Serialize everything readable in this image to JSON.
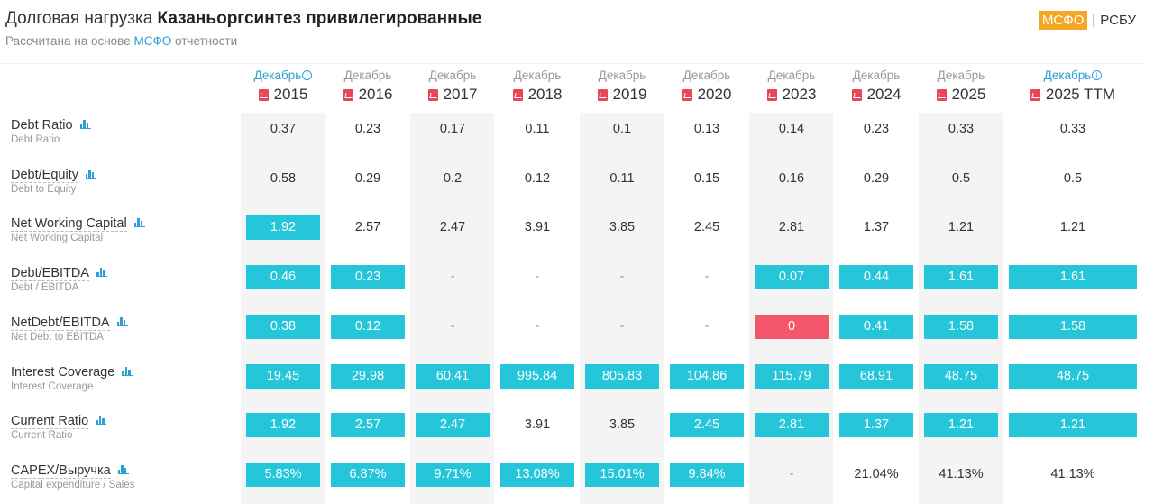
{
  "header": {
    "title_prefix": "Долговая нагрузка",
    "title_company": "Казаньоргсинтез привилегированные",
    "subtitle_prefix": "Рассчитана на основе",
    "subtitle_highlight": "МСФО",
    "subtitle_suffix": "отчетности",
    "standard_active": "МСФО",
    "standard_separator": "|",
    "standard_inactive": "РСБУ"
  },
  "icons": {
    "pdf": "pdf-icon",
    "chart": "bar-chart-icon",
    "info": "info-icon"
  },
  "colors": {
    "highlight": "#26c6da",
    "negative": "#f4566a",
    "accent": "#2b9fd6",
    "active_standard": "#f5a623"
  },
  "columns": [
    {
      "month": "Декабрь",
      "year": "2015",
      "info": true
    },
    {
      "month": "Декабрь",
      "year": "2016",
      "info": false
    },
    {
      "month": "Декабрь",
      "year": "2017",
      "info": false
    },
    {
      "month": "Декабрь",
      "year": "2018",
      "info": false
    },
    {
      "month": "Декабрь",
      "year": "2019",
      "info": false
    },
    {
      "month": "Декабрь",
      "year": "2020",
      "info": false
    },
    {
      "month": "Декабрь",
      "year": "2023",
      "info": false
    },
    {
      "month": "Декабрь",
      "year": "2024",
      "info": false
    },
    {
      "month": "Декабрь",
      "year": "2025",
      "info": false
    },
    {
      "month": "Декабрь",
      "year": "2025 TTM",
      "info": true
    }
  ],
  "rows": [
    {
      "name": "Debt Ratio",
      "sub": "Debt Ratio",
      "cells": [
        {
          "v": "0.37",
          "s": ""
        },
        {
          "v": "0.23",
          "s": ""
        },
        {
          "v": "0.17",
          "s": ""
        },
        {
          "v": "0.11",
          "s": ""
        },
        {
          "v": "0.1",
          "s": ""
        },
        {
          "v": "0.13",
          "s": ""
        },
        {
          "v": "0.14",
          "s": ""
        },
        {
          "v": "0.23",
          "s": ""
        },
        {
          "v": "0.33",
          "s": ""
        },
        {
          "v": "0.33",
          "s": ""
        }
      ]
    },
    {
      "name": "Debt/Equity",
      "sub": "Debt to Equity",
      "cells": [
        {
          "v": "0.58",
          "s": ""
        },
        {
          "v": "0.29",
          "s": ""
        },
        {
          "v": "0.2",
          "s": ""
        },
        {
          "v": "0.12",
          "s": ""
        },
        {
          "v": "0.11",
          "s": ""
        },
        {
          "v": "0.15",
          "s": ""
        },
        {
          "v": "0.16",
          "s": ""
        },
        {
          "v": "0.29",
          "s": ""
        },
        {
          "v": "0.5",
          "s": ""
        },
        {
          "v": "0.5",
          "s": ""
        }
      ]
    },
    {
      "name": "Net Working Capital",
      "sub": "Net Working Capital",
      "cells": [
        {
          "v": "1.92",
          "s": "hl"
        },
        {
          "v": "2.57",
          "s": ""
        },
        {
          "v": "2.47",
          "s": ""
        },
        {
          "v": "3.91",
          "s": ""
        },
        {
          "v": "3.85",
          "s": ""
        },
        {
          "v": "2.45",
          "s": ""
        },
        {
          "v": "2.81",
          "s": ""
        },
        {
          "v": "1.37",
          "s": ""
        },
        {
          "v": "1.21",
          "s": ""
        },
        {
          "v": "1.21",
          "s": ""
        }
      ]
    },
    {
      "name": "Debt/EBITDA",
      "sub": "Debt / EBITDA",
      "cells": [
        {
          "v": "0.46",
          "s": "hl"
        },
        {
          "v": "0.23",
          "s": "hl"
        },
        {
          "v": "-",
          "s": "dash"
        },
        {
          "v": "-",
          "s": "dash"
        },
        {
          "v": "-",
          "s": "dash"
        },
        {
          "v": "-",
          "s": "dash"
        },
        {
          "v": "0.07",
          "s": "hl"
        },
        {
          "v": "0.44",
          "s": "hl"
        },
        {
          "v": "1.61",
          "s": "hl"
        },
        {
          "v": "1.61",
          "s": "hl"
        }
      ]
    },
    {
      "name": "NetDebt/EBITDA",
      "sub": "Net Debt to EBITDA",
      "cells": [
        {
          "v": "0.38",
          "s": "hl"
        },
        {
          "v": "0.12",
          "s": "hl"
        },
        {
          "v": "-",
          "s": "dash"
        },
        {
          "v": "-",
          "s": "dash"
        },
        {
          "v": "-",
          "s": "dash"
        },
        {
          "v": "-",
          "s": "dash"
        },
        {
          "v": "0",
          "s": "neg"
        },
        {
          "v": "0.41",
          "s": "hl"
        },
        {
          "v": "1.58",
          "s": "hl"
        },
        {
          "v": "1.58",
          "s": "hl"
        }
      ]
    },
    {
      "name": "Interest Coverage",
      "sub": "Interest Coverage",
      "cells": [
        {
          "v": "19.45",
          "s": "hl"
        },
        {
          "v": "29.98",
          "s": "hl"
        },
        {
          "v": "60.41",
          "s": "hl"
        },
        {
          "v": "995.84",
          "s": "hl"
        },
        {
          "v": "805.83",
          "s": "hl"
        },
        {
          "v": "104.86",
          "s": "hl"
        },
        {
          "v": "115.79",
          "s": "hl"
        },
        {
          "v": "68.91",
          "s": "hl"
        },
        {
          "v": "48.75",
          "s": "hl"
        },
        {
          "v": "48.75",
          "s": "hl"
        }
      ]
    },
    {
      "name": "Current Ratio",
      "sub": "Current Ratio",
      "cells": [
        {
          "v": "1.92",
          "s": "hl"
        },
        {
          "v": "2.57",
          "s": "hl"
        },
        {
          "v": "2.47",
          "s": "hl"
        },
        {
          "v": "3.91",
          "s": ""
        },
        {
          "v": "3.85",
          "s": ""
        },
        {
          "v": "2.45",
          "s": "hl"
        },
        {
          "v": "2.81",
          "s": "hl"
        },
        {
          "v": "1.37",
          "s": "hl"
        },
        {
          "v": "1.21",
          "s": "hl"
        },
        {
          "v": "1.21",
          "s": "hl"
        }
      ]
    },
    {
      "name": "CAPEX/Выручка",
      "sub": "Capital expenditure / Sales",
      "cells": [
        {
          "v": "5.83%",
          "s": "hl"
        },
        {
          "v": "6.87%",
          "s": "hl"
        },
        {
          "v": "9.71%",
          "s": "hl"
        },
        {
          "v": "13.08%",
          "s": "hl"
        },
        {
          "v": "15.01%",
          "s": "hl"
        },
        {
          "v": "9.84%",
          "s": "hl"
        },
        {
          "v": "-",
          "s": "dash"
        },
        {
          "v": "21.04%",
          "s": ""
        },
        {
          "v": "41.13%",
          "s": ""
        },
        {
          "v": "41.13%",
          "s": ""
        }
      ]
    }
  ]
}
